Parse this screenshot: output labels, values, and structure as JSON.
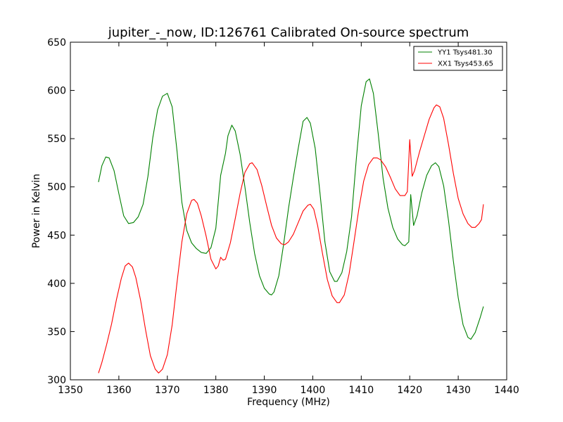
{
  "chart_data": {
    "type": "line",
    "title": "jupiter_-_now, ID:126761 Calibrated On-source spectrum",
    "xlabel": "Frequency (MHz)",
    "ylabel": "Power in Kelvin",
    "xlim": [
      1350,
      1440
    ],
    "ylim": [
      300,
      650
    ],
    "xticks": [
      1350,
      1360,
      1370,
      1380,
      1390,
      1400,
      1410,
      1420,
      1430,
      1440
    ],
    "yticks": [
      300,
      350,
      400,
      450,
      500,
      550,
      600,
      650
    ],
    "grid": false,
    "legend_position": "top-right",
    "series": [
      {
        "name": "YY1 Tsys481.30",
        "color": "#008000",
        "points": [
          [
            1355.8,
            505
          ],
          [
            1356.5,
            522
          ],
          [
            1357.3,
            531
          ],
          [
            1358.0,
            530
          ],
          [
            1359.0,
            517
          ],
          [
            1360.0,
            493
          ],
          [
            1361.0,
            470
          ],
          [
            1362.0,
            462
          ],
          [
            1363.0,
            463
          ],
          [
            1364.0,
            469
          ],
          [
            1365.0,
            482
          ],
          [
            1366.0,
            511
          ],
          [
            1367.0,
            551
          ],
          [
            1368.0,
            580
          ],
          [
            1369.0,
            594
          ],
          [
            1370.0,
            597
          ],
          [
            1371.0,
            583
          ],
          [
            1372.0,
            537
          ],
          [
            1373.0,
            484
          ],
          [
            1374.0,
            455
          ],
          [
            1375.0,
            442
          ],
          [
            1376.0,
            436
          ],
          [
            1377.0,
            432
          ],
          [
            1378.0,
            431
          ],
          [
            1379.0,
            437
          ],
          [
            1380.0,
            457
          ],
          [
            1381.0,
            512
          ],
          [
            1382.0,
            535
          ],
          [
            1382.5,
            553
          ],
          [
            1383.3,
            564
          ],
          [
            1384.0,
            558
          ],
          [
            1385.0,
            534
          ],
          [
            1386.0,
            500
          ],
          [
            1387.0,
            463
          ],
          [
            1388.0,
            431
          ],
          [
            1389.0,
            408
          ],
          [
            1390.0,
            395
          ],
          [
            1391.0,
            389
          ],
          [
            1391.5,
            388
          ],
          [
            1392.0,
            391
          ],
          [
            1393.0,
            408
          ],
          [
            1394.0,
            441
          ],
          [
            1395.0,
            478
          ],
          [
            1396.0,
            510
          ],
          [
            1397.0,
            540
          ],
          [
            1398.0,
            568
          ],
          [
            1398.8,
            572
          ],
          [
            1399.5,
            566
          ],
          [
            1400.5,
            540
          ],
          [
            1401.5,
            493
          ],
          [
            1402.5,
            443
          ],
          [
            1403.5,
            412
          ],
          [
            1404.5,
            402
          ],
          [
            1405.0,
            402
          ],
          [
            1406.0,
            411
          ],
          [
            1407.0,
            433
          ],
          [
            1408.0,
            469
          ],
          [
            1409.0,
            530
          ],
          [
            1410.0,
            584
          ],
          [
            1411.0,
            609
          ],
          [
            1411.7,
            612
          ],
          [
            1412.5,
            597
          ],
          [
            1413.5,
            555
          ],
          [
            1414.5,
            509
          ],
          [
            1415.5,
            478
          ],
          [
            1416.5,
            458
          ],
          [
            1417.5,
            446
          ],
          [
            1418.5,
            440
          ],
          [
            1419.0,
            439
          ],
          [
            1419.8,
            443
          ],
          [
            1420.2,
            492
          ],
          [
            1420.8,
            460
          ],
          [
            1421.5,
            470
          ],
          [
            1422.5,
            494
          ],
          [
            1423.5,
            512
          ],
          [
            1424.5,
            522
          ],
          [
            1425.3,
            525
          ],
          [
            1426.0,
            521
          ],
          [
            1427.0,
            501
          ],
          [
            1428.0,
            465
          ],
          [
            1429.0,
            423
          ],
          [
            1430.0,
            385
          ],
          [
            1431.0,
            357
          ],
          [
            1432.0,
            344
          ],
          [
            1432.6,
            342
          ],
          [
            1433.5,
            349
          ],
          [
            1434.5,
            364
          ],
          [
            1435.2,
            376
          ]
        ]
      },
      {
        "name": "XX1 Tsys453.65",
        "color": "#ff0000",
        "points": [
          [
            1355.8,
            307
          ],
          [
            1356.5,
            318
          ],
          [
            1357.5,
            337
          ],
          [
            1358.5,
            358
          ],
          [
            1359.5,
            383
          ],
          [
            1360.5,
            405
          ],
          [
            1361.3,
            418
          ],
          [
            1362.0,
            421
          ],
          [
            1362.8,
            417
          ],
          [
            1363.5,
            406
          ],
          [
            1364.5,
            382
          ],
          [
            1365.5,
            352
          ],
          [
            1366.5,
            325
          ],
          [
            1367.5,
            311
          ],
          [
            1368.2,
            307
          ],
          [
            1369.0,
            311
          ],
          [
            1370.0,
            326
          ],
          [
            1371.0,
            357
          ],
          [
            1372.0,
            401
          ],
          [
            1373.0,
            443
          ],
          [
            1374.0,
            472
          ],
          [
            1375.0,
            486
          ],
          [
            1375.5,
            487
          ],
          [
            1376.2,
            483
          ],
          [
            1377.0,
            470
          ],
          [
            1378.0,
            449
          ],
          [
            1379.0,
            425
          ],
          [
            1380.0,
            415
          ],
          [
            1380.5,
            418
          ],
          [
            1381.0,
            427
          ],
          [
            1381.5,
            424
          ],
          [
            1382.0,
            425
          ],
          [
            1383.0,
            442
          ],
          [
            1384.0,
            467
          ],
          [
            1385.0,
            493
          ],
          [
            1386.0,
            515
          ],
          [
            1387.0,
            524
          ],
          [
            1387.5,
            525
          ],
          [
            1388.5,
            518
          ],
          [
            1389.5,
            501
          ],
          [
            1390.5,
            480
          ],
          [
            1391.5,
            460
          ],
          [
            1392.5,
            447
          ],
          [
            1393.5,
            441
          ],
          [
            1394.2,
            440
          ],
          [
            1395.0,
            443
          ],
          [
            1396.0,
            451
          ],
          [
            1397.0,
            463
          ],
          [
            1398.0,
            475
          ],
          [
            1399.0,
            481
          ],
          [
            1399.5,
            482
          ],
          [
            1400.2,
            477
          ],
          [
            1401.0,
            460
          ],
          [
            1402.0,
            431
          ],
          [
            1403.0,
            404
          ],
          [
            1404.0,
            387
          ],
          [
            1405.0,
            380
          ],
          [
            1405.5,
            380
          ],
          [
            1406.5,
            388
          ],
          [
            1407.5,
            410
          ],
          [
            1408.5,
            443
          ],
          [
            1409.5,
            477
          ],
          [
            1410.5,
            506
          ],
          [
            1411.5,
            523
          ],
          [
            1412.5,
            530
          ],
          [
            1413.3,
            530
          ],
          [
            1414.0,
            528
          ],
          [
            1415.0,
            521
          ],
          [
            1416.0,
            510
          ],
          [
            1417.0,
            498
          ],
          [
            1418.0,
            491
          ],
          [
            1419.0,
            491
          ],
          [
            1419.5,
            495
          ],
          [
            1420.0,
            549
          ],
          [
            1420.5,
            511
          ],
          [
            1421.0,
            517
          ],
          [
            1422.0,
            536
          ],
          [
            1423.0,
            553
          ],
          [
            1424.0,
            570
          ],
          [
            1425.0,
            582
          ],
          [
            1425.5,
            585
          ],
          [
            1426.2,
            583
          ],
          [
            1427.0,
            571
          ],
          [
            1428.0,
            544
          ],
          [
            1429.0,
            514
          ],
          [
            1430.0,
            488
          ],
          [
            1431.0,
            472
          ],
          [
            1432.0,
            462
          ],
          [
            1432.8,
            458
          ],
          [
            1433.5,
            458
          ],
          [
            1434.3,
            462
          ],
          [
            1434.8,
            466
          ],
          [
            1435.2,
            482
          ]
        ]
      }
    ]
  }
}
